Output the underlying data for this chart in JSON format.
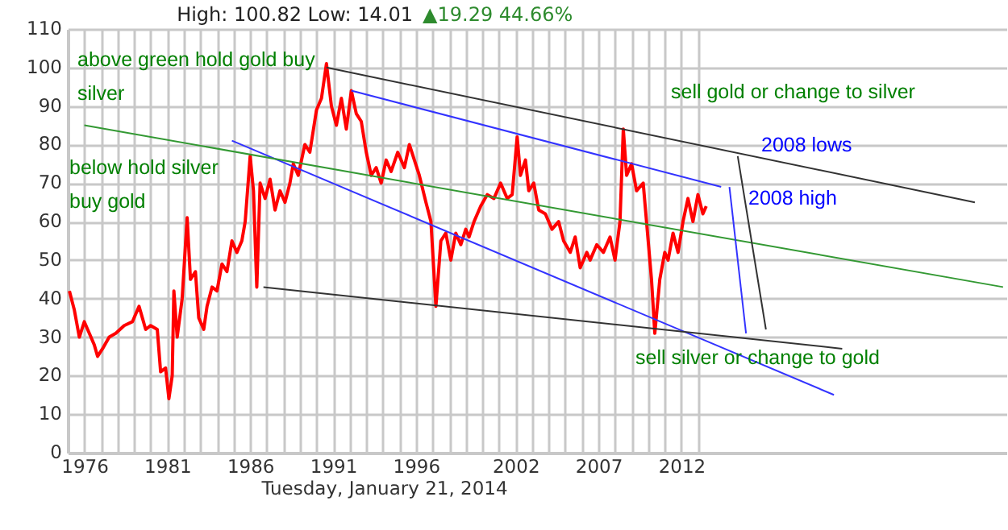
{
  "chart_data": {
    "type": "line",
    "title": "High: 100.82 Low: 14.01",
    "subtitle": "▲19.29 44.66%",
    "xlabel": "Tuesday, January 21, 2014",
    "xlim": [
      1975.0,
      2031.6
    ],
    "xticks": [
      {
        "value": 1975,
        "label": null
      },
      {
        "value": 1976,
        "label": "1976"
      },
      {
        "value": 1977,
        "label": null
      },
      {
        "value": 1978,
        "label": null
      },
      {
        "value": 1979,
        "label": null
      },
      {
        "value": 1980,
        "label": null
      },
      {
        "value": 1981,
        "label": "1981"
      },
      {
        "value": 1982,
        "label": null
      },
      {
        "value": 1983,
        "label": null
      },
      {
        "value": 1984,
        "label": null
      },
      {
        "value": 1985,
        "label": null
      },
      {
        "value": 1986,
        "label": "1986"
      },
      {
        "value": 1987,
        "label": null
      },
      {
        "value": 1988,
        "label": null
      },
      {
        "value": 1989,
        "label": null
      },
      {
        "value": 1990,
        "label": null
      },
      {
        "value": 1991,
        "label": "1991"
      },
      {
        "value": 1992,
        "label": null
      },
      {
        "value": 1993,
        "label": null
      },
      {
        "value": 1994,
        "label": null
      },
      {
        "value": 1995,
        "label": null
      },
      {
        "value": 1996,
        "label": "1996"
      },
      {
        "value": 1997,
        "label": null
      },
      {
        "value": 1998,
        "label": null
      },
      {
        "value": 1999,
        "label": null
      },
      {
        "value": 2000,
        "label": null
      },
      {
        "value": 2001,
        "label": null
      },
      {
        "value": 2002,
        "label": "2002"
      },
      {
        "value": 2003,
        "label": null
      },
      {
        "value": 2004,
        "label": null
      },
      {
        "value": 2005,
        "label": null
      },
      {
        "value": 2006,
        "label": null
      },
      {
        "value": 2007,
        "label": "2007"
      },
      {
        "value": 2008,
        "label": null
      },
      {
        "value": 2009,
        "label": null
      },
      {
        "value": 2010,
        "label": null
      },
      {
        "value": 2011,
        "label": null
      },
      {
        "value": 2012,
        "label": "2012"
      },
      {
        "value": 2013,
        "label": null
      }
    ],
    "ylim": [
      0,
      110
    ],
    "yticks": [
      0,
      10,
      20,
      30,
      40,
      50,
      60,
      70,
      80,
      90,
      100,
      110
    ],
    "grid": true,
    "series": [
      {
        "color": "#ff0000",
        "x": [
          1975.1,
          1975.4,
          1975.7,
          1976.0,
          1976.3,
          1976.6,
          1976.8,
          1977.1,
          1977.5,
          1977.9,
          1978.4,
          1978.9,
          1979.3,
          1979.5,
          1979.7,
          1980.0,
          1980.4,
          1980.6,
          1980.9,
          1981.1,
          1981.3,
          1981.4,
          1981.6,
          1981.9,
          1982.2,
          1982.4,
          1982.7,
          1982.9,
          1983.2,
          1983.4,
          1983.7,
          1984.0,
          1984.3,
          1984.6,
          1984.9,
          1985.2,
          1985.5,
          1985.7,
          1986.0,
          1986.2,
          1986.4,
          1986.6,
          1986.9,
          1987.2,
          1987.5,
          1987.8,
          1988.1,
          1988.4,
          1988.6,
          1988.9,
          1989.3,
          1989.6,
          1990.0,
          1990.3,
          1990.6,
          1990.9,
          1991.2,
          1991.5,
          1991.8,
          1992.1,
          1992.4,
          1992.7,
          1993.0,
          1993.3,
          1993.6,
          1993.9,
          1994.2,
          1994.5,
          1994.9,
          1995.3,
          1995.6,
          1995.9,
          1996.2,
          1996.6,
          1996.9,
          1997.2,
          1997.5,
          1997.8,
          1998.1,
          1998.4,
          1998.7,
          1999.0,
          1999.2,
          1999.5,
          1999.9,
          2000.3,
          2000.7,
          2001.1,
          2001.5,
          2001.8,
          2002.1,
          2002.3,
          2002.6,
          2002.8,
          2003.1,
          2003.4,
          2003.8,
          2004.2,
          2004.6,
          2004.9,
          2005.3,
          2005.6,
          2005.9,
          2006.3,
          2006.5,
          2006.9,
          2007.3,
          2007.7,
          2008.0,
          2008.3,
          2008.5,
          2008.7,
          2009.0,
          2009.3,
          2009.7,
          2009.9,
          2010.2,
          2010.4,
          2010.7,
          2011.0,
          2011.2,
          2011.5,
          2011.8,
          2012.1,
          2012.4,
          2012.7,
          2013.0,
          2013.3,
          2013.5
        ],
        "values": [
          42,
          37,
          30,
          34,
          31,
          28,
          25,
          27,
          30,
          31,
          33,
          34,
          38,
          35,
          32,
          33,
          32,
          21,
          22,
          14,
          20,
          42,
          30,
          40,
          61,
          45,
          47,
          35,
          32,
          38,
          43,
          42,
          49,
          47,
          55,
          52,
          55,
          60,
          77,
          68,
          43,
          70,
          66,
          71,
          63,
          68,
          65,
          70,
          75,
          72,
          80,
          78,
          89,
          92,
          101,
          90,
          85,
          92,
          84,
          94,
          88,
          86,
          78,
          72,
          74,
          70,
          76,
          73,
          78,
          74,
          80,
          76,
          72,
          65,
          60,
          38,
          55,
          57,
          50,
          57,
          54,
          58,
          56,
          60,
          64,
          67,
          66,
          70,
          66,
          67,
          82,
          72,
          76,
          68,
          70,
          63,
          62,
          58,
          60,
          55,
          52,
          56,
          48,
          52,
          50,
          54,
          52,
          56,
          50,
          60,
          84,
          72,
          75,
          68,
          70,
          60,
          45,
          31,
          45,
          52,
          50,
          57,
          52,
          60,
          66,
          60,
          67,
          62,
          64
        ]
      },
      {
        "color": "#333333",
        "x": [
          1990.6,
          2029.7
        ],
        "values": [
          100,
          65
        ]
      },
      {
        "color": "#3333ff",
        "x": [
          1992.1,
          2014.4
        ],
        "values": [
          94,
          69
        ]
      },
      {
        "color": "#3333ff",
        "x": [
          1984.9,
          2021.2
        ],
        "values": [
          81,
          15
        ]
      },
      {
        "color": "#339933",
        "x": [
          1976.0,
          2031.4
        ],
        "values": [
          85,
          43
        ]
      },
      {
        "color": "#333333",
        "x": [
          1986.8,
          2021.7
        ],
        "values": [
          43,
          27
        ]
      },
      {
        "color": "#3333ff",
        "x": [
          2014.9,
          2015.9
        ],
        "values": [
          69,
          31
        ]
      },
      {
        "color": "#333333",
        "x": [
          2015.4,
          2017.1
        ],
        "values": [
          77,
          32
        ]
      }
    ],
    "annotations": [
      "above green hold gold buy\nsilver",
      "below hold silver\nbuy gold",
      "sell gold or change to silver",
      "2008 lows",
      "2008 high",
      "sell silver or change to gold"
    ]
  }
}
